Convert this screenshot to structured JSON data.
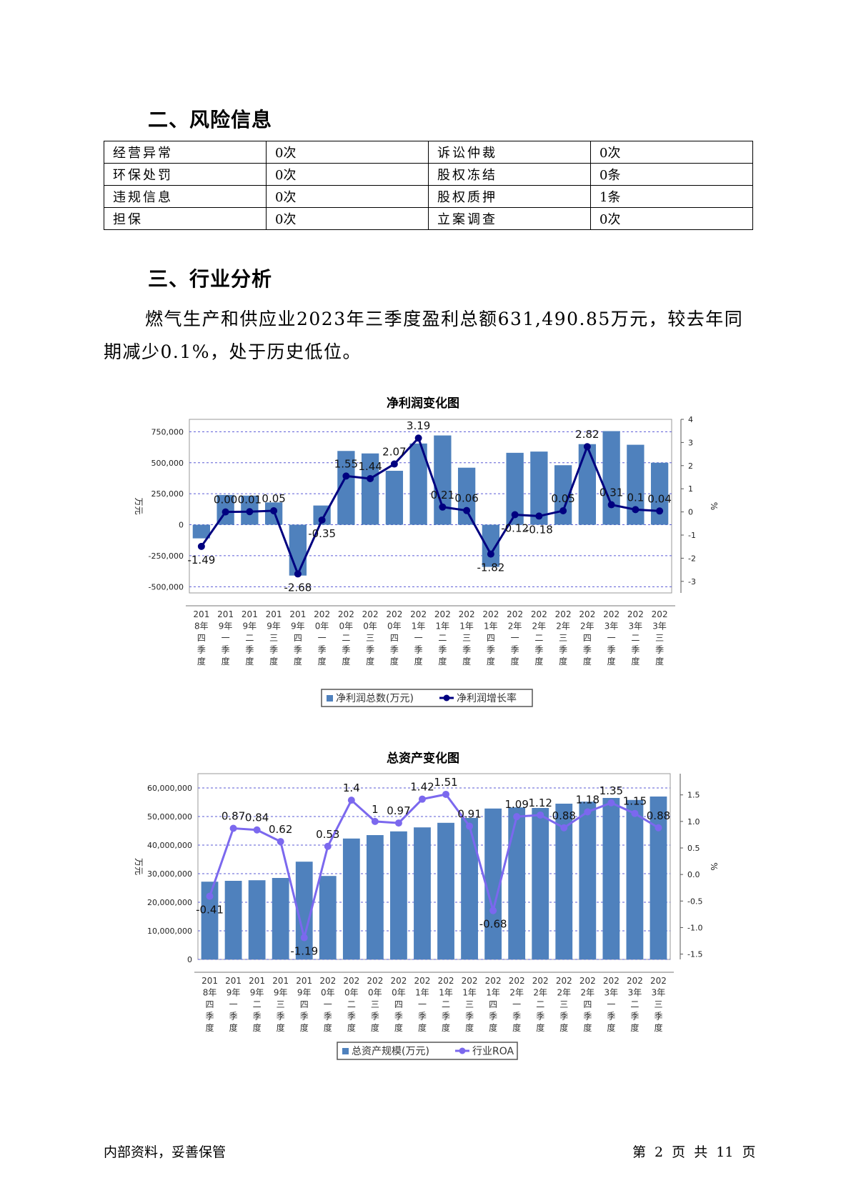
{
  "sections": {
    "risk_title": "二、风险信息",
    "industry_title": "三、行业分析"
  },
  "risk_table": [
    [
      "经营异常",
      "0次",
      "诉讼仲裁",
      "0次"
    ],
    [
      "环保处罚",
      "0次",
      "股权冻结",
      "0条"
    ],
    [
      "违规信息",
      "0次",
      "股权质押",
      "1条"
    ],
    [
      "担保",
      "0次",
      "立案调查",
      "0次"
    ]
  ],
  "analysis_text": "燃气生产和供应业2023年三季度盈利总额631,490.85万元，较去年同期减少0.1%，处于历史低位。",
  "footer": {
    "left": "内部资料，妥善保管",
    "right": "第 2 页  共 11 页"
  },
  "chart_data": [
    {
      "type": "bar",
      "title": "净利润变化图",
      "ylabel_left": "万元",
      "ylabel_right": "%",
      "categories": [
        "2018年四季度",
        "2019年一季度",
        "2019年二季度",
        "2019年三季度",
        "2019年四季度",
        "2020年一季度",
        "2020年二季度",
        "2020年三季度",
        "2020年四季度",
        "2021年一季度",
        "2021年二季度",
        "2021年三季度",
        "2021年四季度",
        "2022年一季度",
        "2022年二季度",
        "2022年三季度",
        "2022年四季度",
        "2023年一季度",
        "2023年二季度",
        "2023年三季度"
      ],
      "ylim_left": [
        -550000,
        850000
      ],
      "yticks_left": [
        -500000,
        -250000,
        0,
        250000,
        500000,
        750000
      ],
      "ytick_labels_left": [
        "-500,000",
        "-250,000",
        "0",
        "250,000",
        "500,000",
        "750,000"
      ],
      "ylim_right": [
        -3.5,
        4
      ],
      "yticks_right": [
        -3,
        -2,
        -1,
        0,
        1,
        2,
        3,
        4
      ],
      "grid": true,
      "legend_position": "bottom",
      "series": [
        {
          "name": "净利润总数(万元)",
          "kind": "bar",
          "axis": "left",
          "color": "#4f81bd",
          "values": [
            -110000,
            240000,
            235000,
            180000,
            -410000,
            155000,
            595000,
            575000,
            435000,
            655000,
            720000,
            460000,
            -340000,
            580000,
            590000,
            480000,
            650000,
            755000,
            645000,
            500000
          ]
        },
        {
          "name": "净利润增长率",
          "kind": "line",
          "axis": "right",
          "color": "#000080",
          "values": [
            -1.49,
            0.0,
            0.01,
            0.05,
            -2.68,
            -0.35,
            1.55,
            1.44,
            2.07,
            3.19,
            0.21,
            0.06,
            -1.82,
            -0.12,
            -0.18,
            0.05,
            2.82,
            0.31,
            0.1,
            0.04
          ],
          "labels": [
            "-1.49",
            "0.00",
            "0.01",
            "0.05",
            "-2.68",
            "-0.35",
            "1.55",
            "1.44",
            "2.07",
            "3.19",
            "0.21",
            "0.06",
            "-1.82",
            "-0.12",
            "-0.18",
            "0.05",
            "2.82",
            "0.31",
            "0.1",
            "0.04"
          ]
        }
      ]
    },
    {
      "type": "bar",
      "title": "总资产变化图",
      "ylabel_left": "万元",
      "ylabel_right": "%",
      "categories": [
        "2018年四季度",
        "2019年一季度",
        "2019年二季度",
        "2019年三季度",
        "2019年四季度",
        "2020年一季度",
        "2020年二季度",
        "2020年三季度",
        "2020年四季度",
        "2021年一季度",
        "2021年二季度",
        "2021年三季度",
        "2021年四季度",
        "2022年一季度",
        "2022年二季度",
        "2022年三季度",
        "2022年四季度",
        "2023年一季度",
        "2023年二季度",
        "2023年三季度"
      ],
      "ylim_left": [
        0,
        65000000
      ],
      "yticks_left": [
        0,
        10000000,
        20000000,
        30000000,
        40000000,
        50000000,
        60000000
      ],
      "ytick_labels_left": [
        "0",
        "10,000,000",
        "20,000,000",
        "30,000,000",
        "40,000,000",
        "50,000,000",
        "60,000,000"
      ],
      "ylim_right": [
        -1.6,
        1.9
      ],
      "yticks_right": [
        -1.5,
        -1.0,
        -0.5,
        0.0,
        0.5,
        1.0,
        1.5
      ],
      "ytick_labels_right": [
        "-1.5",
        "-1.0",
        "-0.5",
        "0.0",
        "0.5",
        "1.0",
        "1.5"
      ],
      "grid": true,
      "legend_position": "bottom",
      "series": [
        {
          "name": "总资产规模(万元)",
          "kind": "bar",
          "axis": "left",
          "color": "#4f81bd",
          "values": [
            27200000,
            27500000,
            27700000,
            28500000,
            34200000,
            29200000,
            42300000,
            43500000,
            44800000,
            46200000,
            47800000,
            49500000,
            52800000,
            53200000,
            53000000,
            54500000,
            55200000,
            56500000,
            55800000,
            57000000
          ]
        },
        {
          "name": "行业ROA",
          "kind": "line",
          "axis": "right",
          "color": "#7b68ee",
          "values": [
            -0.41,
            0.87,
            0.84,
            0.62,
            -1.19,
            0.53,
            1.4,
            1.0,
            0.97,
            1.42,
            1.51,
            0.91,
            -0.68,
            1.09,
            1.12,
            0.88,
            1.18,
            1.35,
            1.15,
            0.88
          ],
          "labels": [
            "-0.41",
            "0.87",
            "0.84",
            "0.62",
            "-1.19",
            "0.53",
            "1.4",
            "1",
            "0.97",
            "1.42",
            "1.51",
            "0.91",
            "-0.68",
            "1.09",
            "1.12",
            "0.88",
            "1.18",
            "1.35",
            "1.15",
            "0.88"
          ]
        }
      ]
    }
  ]
}
